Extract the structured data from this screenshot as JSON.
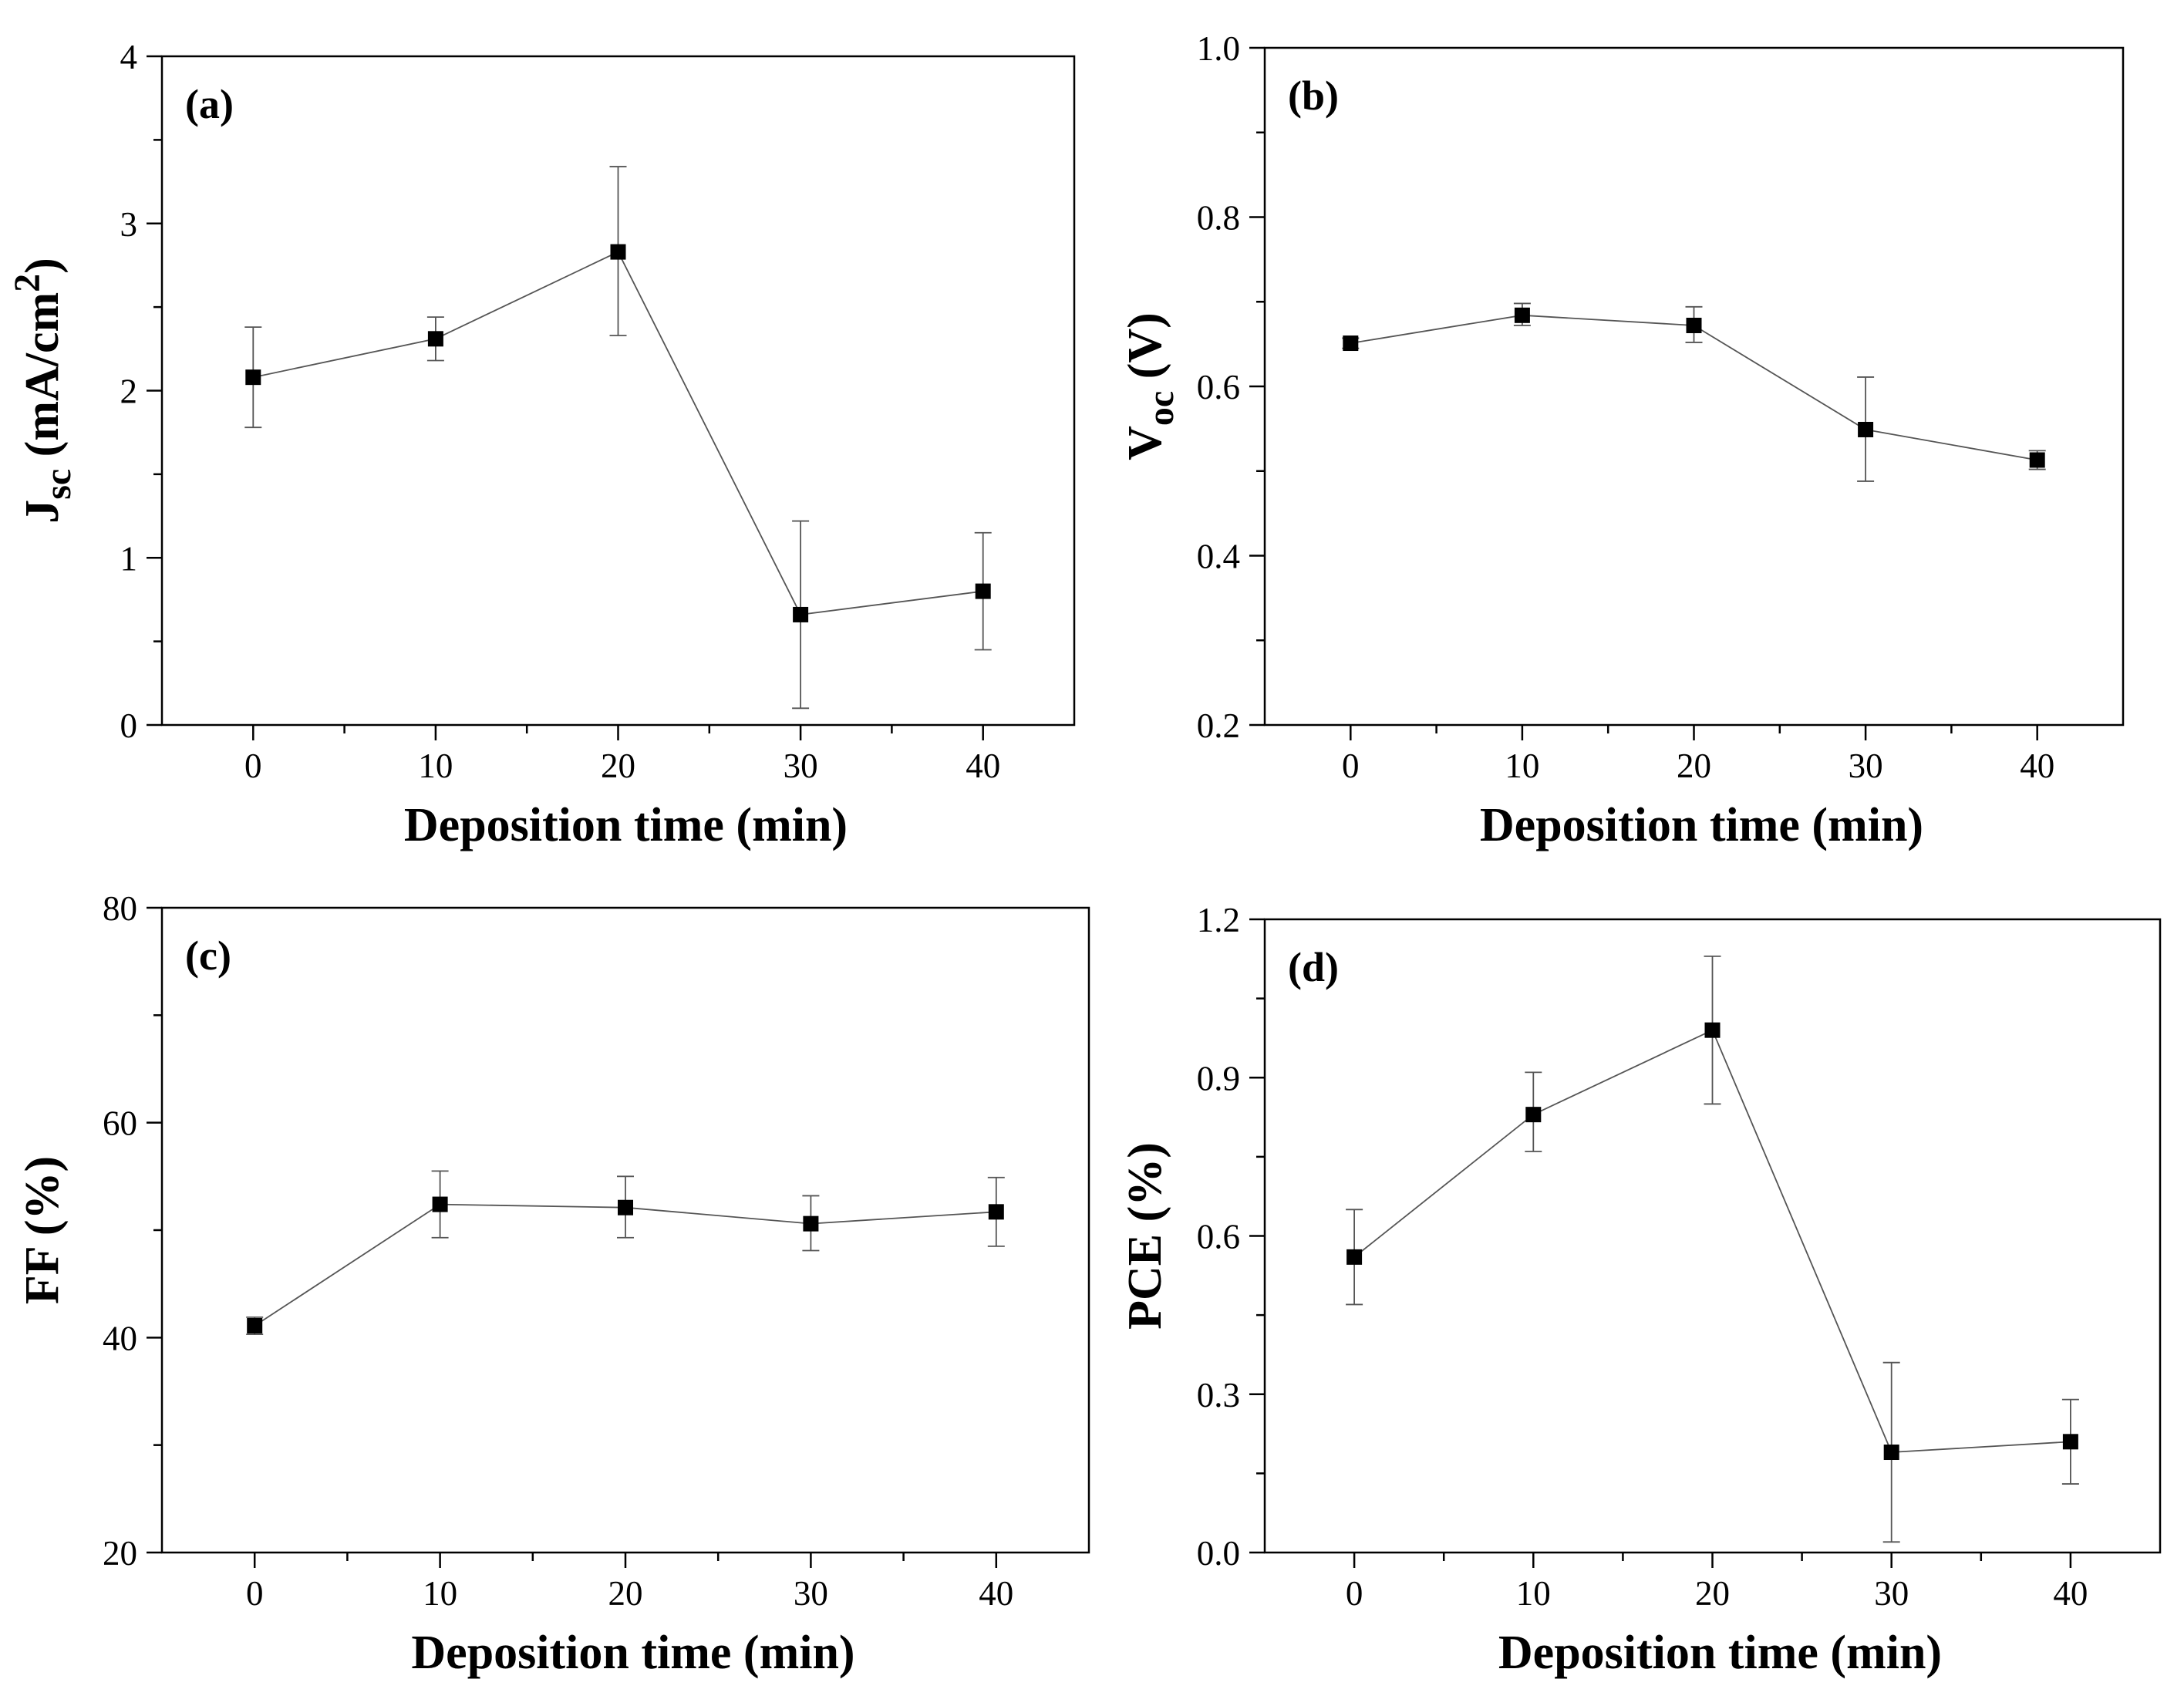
{
  "chart_data": [
    {
      "type": "scatter",
      "panel_label": "(a)",
      "xlabel": "Deposition time (min)",
      "ylabel": {
        "main": "J",
        "sub": "sc",
        "rest": " (mA/cm",
        "sup": "2",
        "end": ")"
      },
      "xlim": [
        -5,
        45
      ],
      "ylim": [
        0,
        4
      ],
      "xticks": [
        0,
        10,
        20,
        30,
        40
      ],
      "yticks": [
        0,
        1,
        2,
        3,
        4
      ],
      "grid": false,
      "x": [
        0,
        10,
        20,
        30,
        40
      ],
      "y": [
        2.08,
        2.31,
        2.83,
        0.66,
        0.8
      ],
      "err_lower": [
        1.78,
        2.18,
        2.33,
        0.1,
        0.45
      ],
      "err_upper": [
        2.38,
        2.44,
        3.34,
        1.22,
        1.15
      ]
    },
    {
      "type": "scatter",
      "panel_label": "(b)",
      "xlabel": "Deposition time (min)",
      "ylabel": {
        "main": "V",
        "sub": "oc",
        "rest": " (V)",
        "sup": "",
        "end": ""
      },
      "xlim": [
        -5,
        45
      ],
      "ylim": [
        0.2,
        1.0
      ],
      "xticks": [
        0,
        10,
        20,
        30,
        40
      ],
      "yticks": [
        0.2,
        0.4,
        0.6,
        0.8,
        1.0
      ],
      "grid": false,
      "x": [
        0,
        10,
        20,
        30,
        40
      ],
      "y": [
        0.651,
        0.684,
        0.672,
        0.549,
        0.513
      ],
      "err_lower": [
        0.645,
        0.672,
        0.652,
        0.488,
        0.502
      ],
      "err_upper": [
        0.657,
        0.698,
        0.694,
        0.611,
        0.524
      ]
    },
    {
      "type": "scatter",
      "panel_label": "(c)",
      "xlabel": "Deposition time (min)",
      "ylabel": {
        "main": "FF (%)",
        "sub": "",
        "rest": "",
        "sup": "",
        "end": ""
      },
      "xlim": [
        -5,
        45
      ],
      "ylim": [
        20,
        80
      ],
      "xticks": [
        0,
        10,
        20,
        30,
        40
      ],
      "yticks": [
        20,
        40,
        60,
        80
      ],
      "grid": false,
      "x": [
        0,
        10,
        20,
        30,
        40
      ],
      "y": [
        41.1,
        52.4,
        52.1,
        50.6,
        51.7
      ],
      "err_lower": [
        40.3,
        49.3,
        49.3,
        48.1,
        48.5
      ],
      "err_upper": [
        41.9,
        55.5,
        55.0,
        53.2,
        54.9
      ]
    },
    {
      "type": "scatter",
      "panel_label": "(d)",
      "xlabel": "Deposition time (min)",
      "ylabel": {
        "main": "PCE (%)",
        "sub": "",
        "rest": "",
        "sup": "",
        "end": ""
      },
      "xlim": [
        -5,
        45
      ],
      "ylim": [
        0.0,
        1.2
      ],
      "xticks": [
        0,
        10,
        20,
        30,
        40
      ],
      "yticks": [
        0.0,
        0.3,
        0.6,
        0.9,
        1.2
      ],
      "ytick_labels": [
        "0.0",
        "0.3",
        "0.6",
        "0.9",
        "1.2"
      ],
      "grid": false,
      "x": [
        0,
        10,
        20,
        30,
        40
      ],
      "y": [
        0.56,
        0.83,
        0.99,
        0.19,
        0.21
      ],
      "err_lower": [
        0.47,
        0.76,
        0.85,
        0.02,
        0.13
      ],
      "err_upper": [
        0.65,
        0.91,
        1.13,
        0.36,
        0.29
      ]
    }
  ]
}
